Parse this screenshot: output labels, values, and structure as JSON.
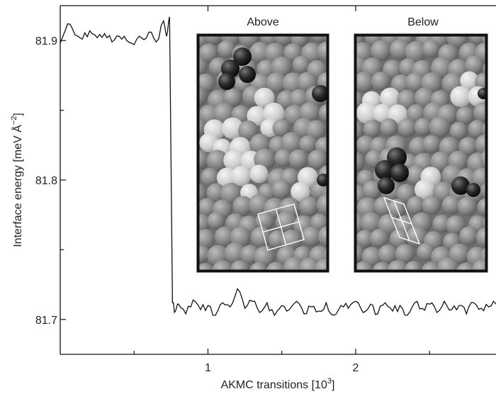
{
  "chart_data": {
    "type": "line",
    "xlabel": "AKMC transitions [10",
    "xlabel_exp": "3",
    "xlabel_end": "]",
    "ylabel": "Interface energy [meV Å",
    "ylabel_exp": "−2",
    "ylabel_end": "]",
    "xlim": [
      0,
      2.95
    ],
    "ylim": [
      81.675,
      81.925
    ],
    "x_ticks": [
      {
        "value": 1,
        "label": "1"
      },
      {
        "value": 2,
        "label": "2"
      }
    ],
    "x_minor_ticks": [
      0.5,
      1.5,
      2.5
    ],
    "y_ticks": [
      {
        "value": 81.7,
        "label": "81.7"
      },
      {
        "value": 81.8,
        "label": "81.8"
      },
      {
        "value": 81.9,
        "label": "81.9"
      }
    ],
    "y_minor_ticks": [
      81.75,
      81.85
    ],
    "transition_x": 0.76,
    "series": [
      {
        "color": "#111111",
        "x": [
          0.0,
          0.05,
          0.1,
          0.15,
          0.2,
          0.25,
          0.3,
          0.35,
          0.4,
          0.45,
          0.5,
          0.55,
          0.6,
          0.65,
          0.7,
          0.72,
          0.74,
          0.76,
          0.78,
          0.8,
          0.85,
          0.9,
          0.95,
          1.0,
          1.05,
          1.1,
          1.15,
          1.2,
          1.25,
          1.3,
          1.35,
          1.4,
          1.45,
          1.5,
          1.55,
          1.6,
          1.65,
          1.7,
          1.75,
          1.8,
          1.85,
          1.9,
          1.95,
          2.0,
          2.05,
          2.1,
          2.15,
          2.2,
          2.25,
          2.3,
          2.35,
          2.4,
          2.45,
          2.5,
          2.55,
          2.6,
          2.65,
          2.7,
          2.75,
          2.8,
          2.85,
          2.9,
          2.95
        ],
        "y": [
          81.898,
          81.912,
          81.904,
          81.901,
          81.907,
          81.902,
          81.905,
          81.899,
          81.903,
          81.9,
          81.897,
          81.902,
          81.906,
          81.899,
          81.914,
          81.903,
          81.917,
          81.712,
          81.706,
          81.711,
          81.704,
          81.714,
          81.707,
          81.71,
          81.703,
          81.712,
          81.709,
          81.722,
          81.708,
          81.713,
          81.705,
          81.712,
          81.703,
          81.71,
          81.707,
          81.713,
          81.704,
          81.709,
          81.706,
          81.712,
          81.703,
          81.71,
          81.708,
          81.713,
          81.705,
          81.711,
          81.704,
          81.712,
          81.706,
          81.71,
          81.703,
          81.712,
          81.708,
          81.711,
          81.705,
          81.713,
          81.707,
          81.71,
          81.704,
          81.712,
          81.708,
          81.709,
          81.711
        ]
      }
    ],
    "insets": [
      {
        "label": "Above"
      },
      {
        "label": "Below"
      }
    ]
  }
}
